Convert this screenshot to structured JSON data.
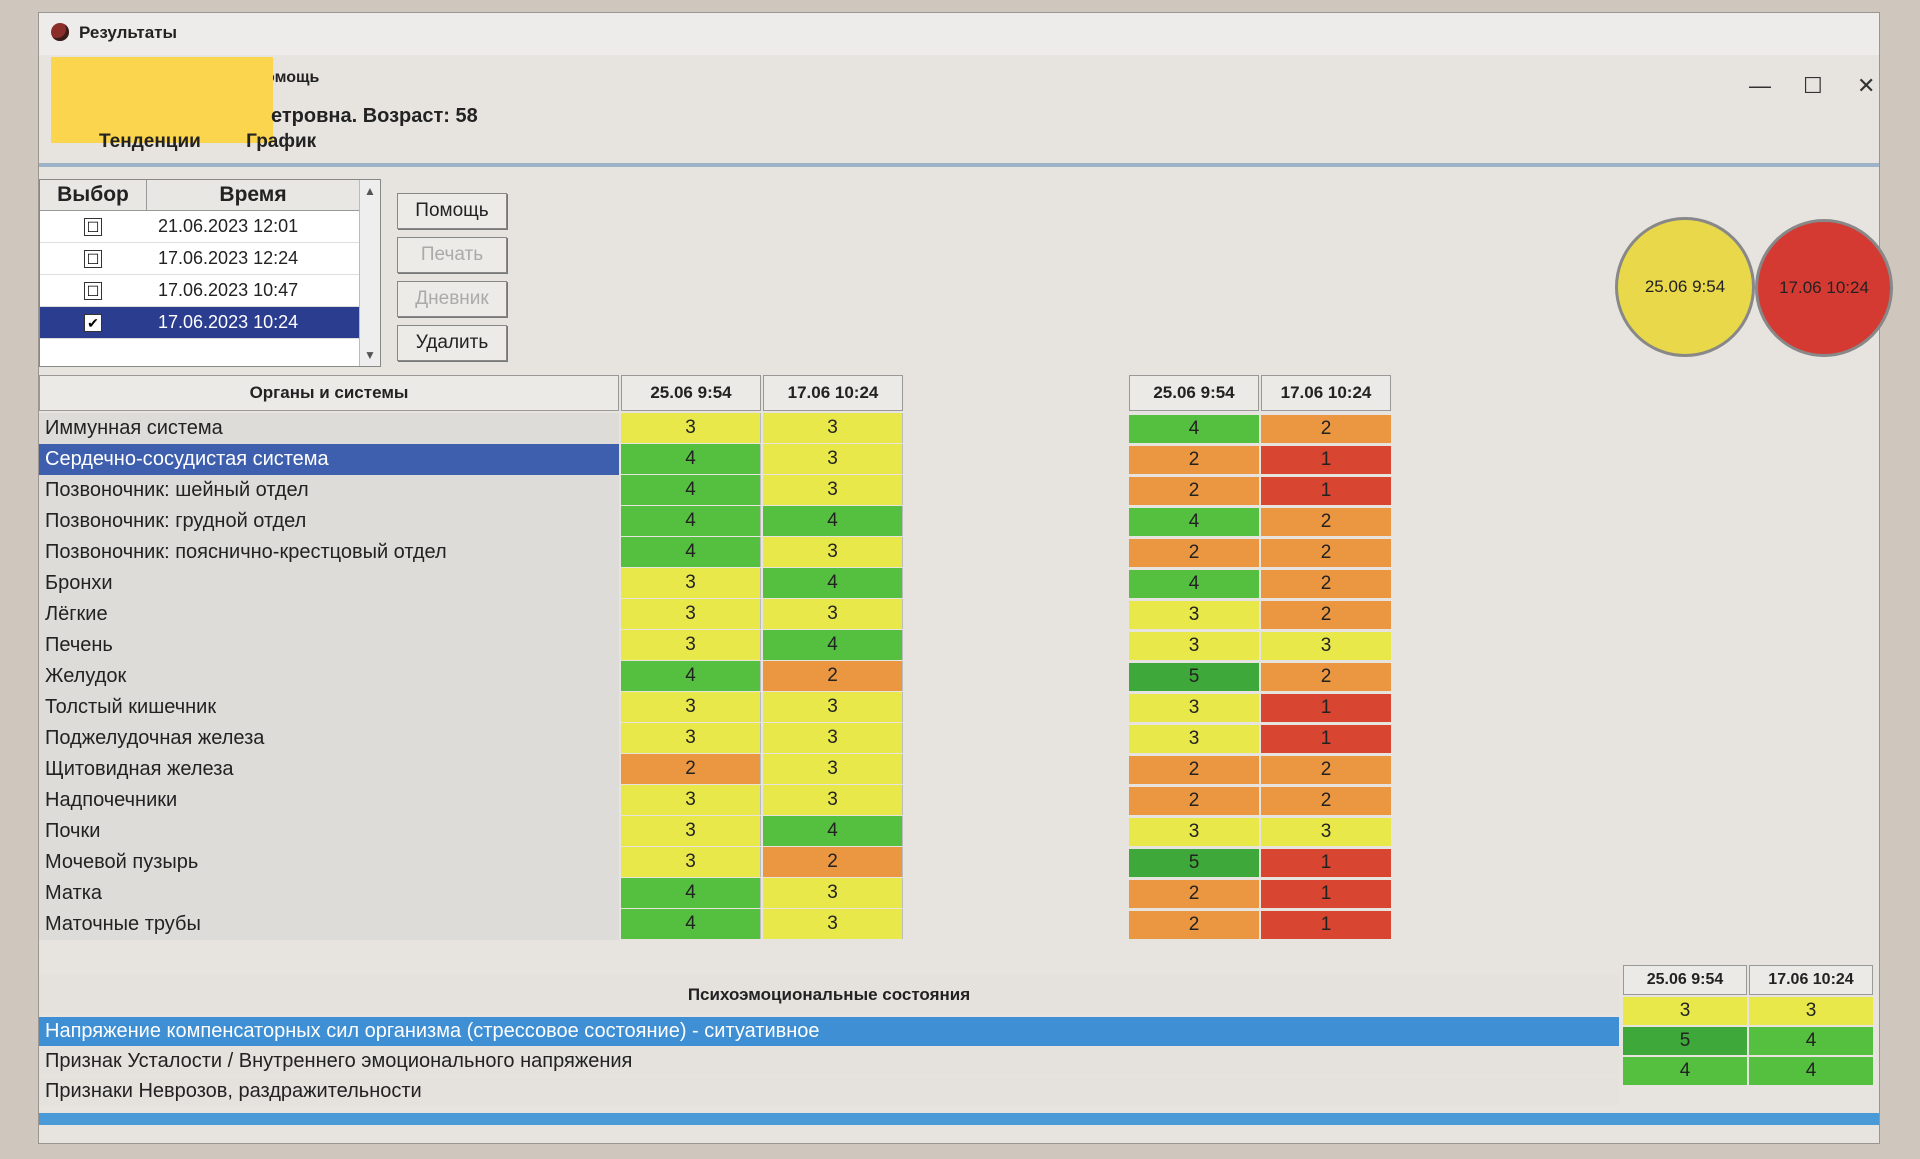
{
  "colors": {
    "s1": "#e7883a",
    "s2": "#eb9640",
    "s3": "#e8e84a",
    "s4": "#55c03f",
    "s5": "#3ea93a",
    "r1": "#d84530",
    "selection": "#2b3d8f"
  },
  "window": {
    "title": "Результаты",
    "menu_fragment": "омощь",
    "patient_fragment": "етровна. Возраст: 58",
    "tabs": [
      "Тенденции",
      "График"
    ],
    "controls": [
      "—",
      "☐",
      "✕"
    ]
  },
  "sessions": {
    "headers": {
      "select": "Выбор",
      "time": "Время"
    },
    "rows": [
      {
        "time": "21.06.2023 12:01",
        "checked": "☐"
      },
      {
        "time": "17.06.2023 12:24",
        "checked": "☐"
      },
      {
        "time": "17.06.2023 10:47",
        "checked": "☐"
      },
      {
        "time": "17.06.2023 10:24",
        "checked": "✔"
      }
    ]
  },
  "buttons": {
    "help": "Помощь",
    "print": "Печать",
    "diary": "Дневник",
    "delete": "Удалить"
  },
  "circles": [
    {
      "label": "25.06 9:54",
      "color": "#e8d84a"
    },
    {
      "label": "17.06 10:24",
      "color": "#d43a32"
    }
  ],
  "organs": {
    "header": "Органы и системы",
    "col1": "25.06 9:54",
    "col2": "17.06 10:24",
    "rows": [
      {
        "name": "Иммунная система",
        "a": "3",
        "b": "3",
        "ra": "4",
        "rb": "2"
      },
      {
        "name": "Сердечно-сосудистая система",
        "a": "4",
        "b": "3",
        "ra": "2",
        "rb": "1"
      },
      {
        "name": "Позвоночник: шейный отдел",
        "a": "4",
        "b": "3",
        "ra": "2",
        "rb": "1"
      },
      {
        "name": "Позвоночник: грудной отдел",
        "a": "4",
        "b": "4",
        "ra": "4",
        "rb": "2"
      },
      {
        "name": "Позвоночник: пояснично-крестцовый отдел",
        "a": "4",
        "b": "3",
        "ra": "2",
        "rb": "2"
      },
      {
        "name": "Бронхи",
        "a": "3",
        "b": "4",
        "ra": "4",
        "rb": "2"
      },
      {
        "name": "Лёгкие",
        "a": "3",
        "b": "3",
        "ra": "3",
        "rb": "2"
      },
      {
        "name": "Печень",
        "a": "3",
        "b": "4",
        "ra": "3",
        "rb": "3"
      },
      {
        "name": "Желудок",
        "a": "4",
        "b": "2",
        "ra": "5",
        "rb": "2"
      },
      {
        "name": "Толстый кишечник",
        "a": "3",
        "b": "3",
        "ra": "3",
        "rb": "1"
      },
      {
        "name": "Поджелудочная железа",
        "a": "3",
        "b": "3",
        "ra": "3",
        "rb": "1"
      },
      {
        "name": "Щитовидная железа",
        "a": "2",
        "b": "3",
        "ra": "2",
        "rb": "2"
      },
      {
        "name": "Надпочечники",
        "a": "3",
        "b": "3",
        "ra": "2",
        "rb": "2"
      },
      {
        "name": "Почки",
        "a": "3",
        "b": "4",
        "ra": "3",
        "rb": "3"
      },
      {
        "name": "Мочевой пузырь",
        "a": "3",
        "b": "2",
        "ra": "5",
        "rb": "1"
      },
      {
        "name": "Матка",
        "a": "4",
        "b": "3",
        "ra": "2",
        "rb": "1"
      },
      {
        "name": "Маточные трубы",
        "a": "4",
        "b": "3",
        "ra": "2",
        "rb": "1"
      }
    ]
  },
  "psycho": {
    "header": "Психоэмоциональные состояния",
    "col1": "25.06 9:54",
    "col2": "17.06 10:24",
    "rows": [
      {
        "name": "Напряжение компенсаторных сил организма (стрессовое состояние) - ситуативное",
        "a": "3",
        "b": "3"
      },
      {
        "name": "Признак Усталости / Внутреннего эмоционального напряжения",
        "a": "5",
        "b": "4"
      },
      {
        "name": "Признаки Неврозов, раздражительности",
        "a": "4",
        "b": "4"
      }
    ]
  }
}
